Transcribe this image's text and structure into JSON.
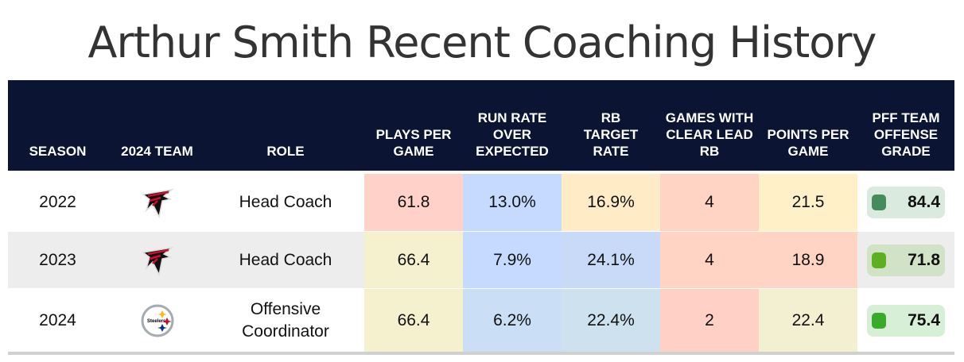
{
  "title": "Arthur Smith Recent Coaching History",
  "headers": [
    "SEASON",
    "2024 TEAM",
    "ROLE",
    "PLAYS PER GAME",
    "RUN RATE OVER EXPECTED",
    "RB TARGET RATE",
    "GAMES WITH CLEAR LEAD RB",
    "POINTS PER GAME",
    "PFF TEAM OFFENSE GRADE"
  ],
  "rows": [
    {
      "season": "2022",
      "team_icon": "falcons-logo-icon",
      "role": "Head Coach",
      "values": [
        "61.8",
        "13.0%",
        "16.9%",
        "4",
        "21.5"
      ],
      "colors": [
        "#ffd1c9",
        "#c6daff",
        "#ffebc6",
        "#ffd4c4",
        "#fff0c8"
      ],
      "grade": "84.4",
      "grade_color": "#458b5c",
      "grade_bg": "#dbeade"
    },
    {
      "season": "2023",
      "team_icon": "falcons-logo-icon",
      "role": "Head Coach",
      "values": [
        "66.4",
        "7.9%",
        "24.1%",
        "4",
        "18.9"
      ],
      "colors": [
        "#f5f0cd",
        "#c6daff",
        "#c8daf8",
        "#ffd4c4",
        "#ffd4c4"
      ],
      "grade": "71.8",
      "grade_color": "#5daf22",
      "grade_bg": "#d2e2c6"
    },
    {
      "season": "2024",
      "team_icon": "steelers-logo-icon",
      "role": "Offensive Coordinator",
      "values": [
        "66.4",
        "6.2%",
        "22.4%",
        "2",
        "22.4"
      ],
      "colors": [
        "#f5f0cd",
        "#cadef6",
        "#cde1ee",
        "#ffd1c6",
        "#f3efd1"
      ],
      "grade": "75.4",
      "grade_color": "#3aaa2c",
      "grade_bg": "#d6efd6"
    }
  ]
}
